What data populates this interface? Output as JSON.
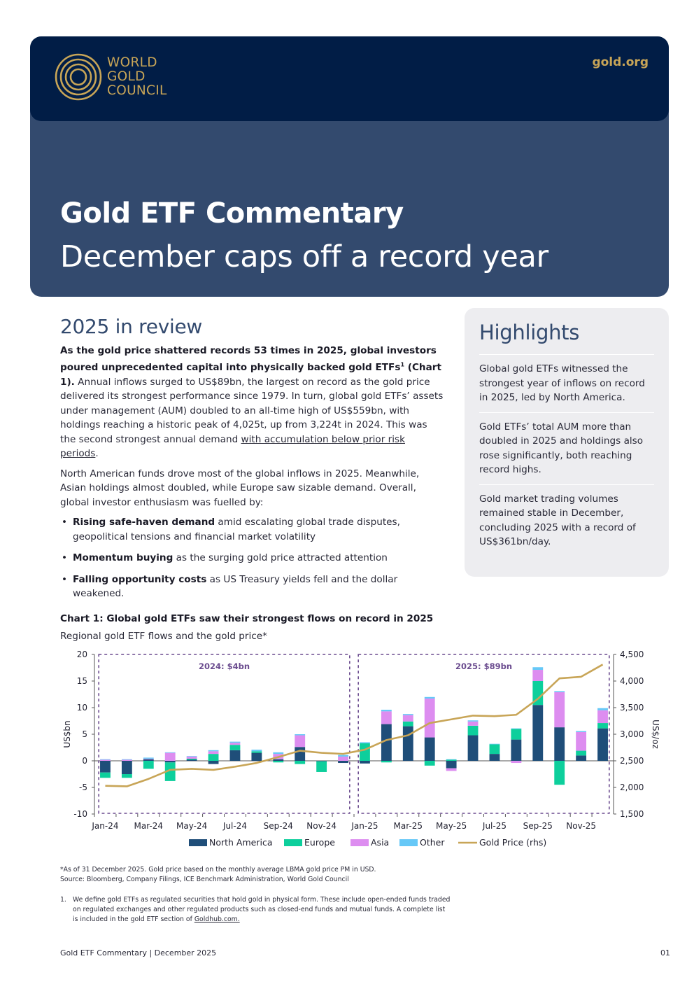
{
  "header": {
    "logo_lines": [
      "WORLD",
      "GOLD",
      "COUNCIL"
    ],
    "site_link": "gold.org",
    "title": "Gold ETF Commentary",
    "subtitle": "December caps off a record year"
  },
  "main": {
    "heading": "2025 in review",
    "p1_lead_a": "As the gold price shattered records 53 times in 2025, global investors poured unprecedented capital into physically backed gold ETFs",
    "p1_lead_sup": "1",
    "p1_lead_b": " (Chart 1).",
    "p1_body_a": " Annual inflows surged to US$89bn, the largest on record as the gold price delivered its strongest performance since 1979. In turn, global gold ETFs’ assets under management (AUM) doubled to an all-time high of US$559bn, with holdings reaching a historic peak of 4,025t, up from 3,224t in 2024. This was the second strongest annual demand ",
    "p1_link": "with accumulation below prior risk periods",
    "p1_end": ".",
    "p2": "North American funds drove most of the global inflows in 2025. Meanwhile, Asian holdings almost doubled, while Europe saw sizable demand. Overall, global investor enthusiasm was fuelled by:",
    "bullets": [
      {
        "bold": "Rising safe-haven demand",
        "text": " amid escalating global trade disputes, geopolitical tensions and financial market volatility"
      },
      {
        "bold": "Momentum buying",
        "text": " as the surging gold price attracted attention"
      },
      {
        "bold": "Falling opportunity costs",
        "text": " as US Treasury yields fell and the dollar weakened."
      }
    ]
  },
  "highlights": {
    "heading": "Highlights",
    "items": [
      "Global gold ETFs witnessed the strongest year of inflows on record in 2025, led by North America.",
      "Gold ETFs’ total AUM more than doubled in 2025 and holdings also rose significantly, both reaching record highs.",
      "Gold market trading volumes remained stable in December, concluding 2025 with a record of US$361bn/day."
    ]
  },
  "chart_title": "Chart 1: Global gold ETFs saw their strongest flows on record in 2025",
  "chart_subtitle": "Regional gold ETF flows and the gold price*",
  "chart_data": {
    "type": "bar",
    "stacked": true,
    "categories": [
      "Jan-24",
      "Feb-24",
      "Mar-24",
      "Apr-24",
      "May-24",
      "Jun-24",
      "Jul-24",
      "Aug-24",
      "Sep-24",
      "Oct-24",
      "Nov-24",
      "Dec-24",
      "Jan-25",
      "Feb-25",
      "Mar-25",
      "Apr-25",
      "May-25",
      "Jun-25",
      "Jul-25",
      "Aug-25",
      "Sep-25",
      "Oct-25",
      "Nov-25",
      "Dec-25"
    ],
    "tick_labels": [
      "Jan-24",
      "Mar-24",
      "May-24",
      "Jul-24",
      "Sep-24",
      "Nov-24",
      "Jan-25",
      "Mar-25",
      "May-25",
      "Jul-25",
      "Sep-25",
      "Nov-25"
    ],
    "series": [
      {
        "name": "North America",
        "color": "#1f4e79",
        "values": [
          -2.2,
          -2.5,
          0.3,
          -0.3,
          0.2,
          -0.6,
          2.0,
          1.5,
          0.3,
          2.6,
          -0.1,
          -0.4,
          -0.5,
          6.9,
          6.5,
          4.4,
          -1.4,
          4.8,
          1.3,
          4.0,
          10.5,
          6.3,
          1.0,
          6.1
        ]
      },
      {
        "name": "Europe",
        "color": "#0dcf9c",
        "values": [
          -1.0,
          -0.7,
          -1.5,
          -3.5,
          0.2,
          1.3,
          1.0,
          0.3,
          -0.3,
          -0.6,
          -2.0,
          0.0,
          3.3,
          -0.3,
          0.9,
          -0.9,
          0.2,
          1.8,
          1.8,
          2.0,
          4.5,
          -4.5,
          0.9,
          1.0
        ]
      },
      {
        "name": "Asia",
        "color": "#dd8df0",
        "values": [
          0.2,
          0.2,
          0.1,
          1.5,
          0.4,
          0.5,
          0.4,
          0.0,
          1.0,
          2.2,
          0.0,
          0.8,
          0.0,
          2.4,
          1.2,
          7.3,
          -0.5,
          0.8,
          0.0,
          -0.4,
          2.1,
          6.6,
          3.5,
          2.4
        ]
      },
      {
        "name": "Other",
        "color": "#66c8f7",
        "values": [
          0.1,
          0.1,
          0.2,
          0.1,
          0.1,
          0.2,
          0.2,
          0.3,
          0.3,
          0.2,
          0.0,
          0.3,
          0.2,
          0.3,
          0.2,
          0.3,
          0.1,
          0.2,
          0.1,
          0.1,
          0.5,
          0.2,
          0.2,
          0.4
        ]
      }
    ],
    "line": {
      "name": "Gold Price (rhs)",
      "color": "#c8a557",
      "values": [
        2030,
        2020,
        2160,
        2330,
        2350,
        2330,
        2390,
        2460,
        2570,
        2690,
        2650,
        2630,
        2710,
        2890,
        2980,
        3210,
        3280,
        3350,
        3340,
        3365,
        3665,
        4050,
        4080,
        4310
      ]
    },
    "ylabel": "US$bn",
    "ylim": [
      -10,
      20
    ],
    "yticks": [
      -10,
      -5,
      0,
      5,
      10,
      15,
      20
    ],
    "y2label": "US$/oz",
    "y2lim": [
      1500,
      4500
    ],
    "y2ticks": [
      "1,500",
      "2,000",
      "2,500",
      "3,000",
      "3,500",
      "4,000",
      "4,500"
    ],
    "annotations": [
      "2024: $4bn",
      "2025: $89bn"
    ],
    "legend_position": "bottom"
  },
  "notes": [
    "*As of 31 December 2025. Gold price based on the monthly average LBMA gold price PM in USD.",
    "Source: Bloomberg, Company Filings, ICE Benchmark Administration, World Gold Council"
  ],
  "footnote": {
    "number": "1.",
    "text": "We define gold ETFs as regulated securities that hold gold in physical form. These include open-ended funds traded on regulated exchanges and other regulated products such as closed-end funds and mutual funds. A complete list is included in the gold ETF section of ",
    "link": "Goldhub.com."
  },
  "footer": {
    "left": "Gold ETF Commentary | December 2025",
    "page": "01"
  }
}
